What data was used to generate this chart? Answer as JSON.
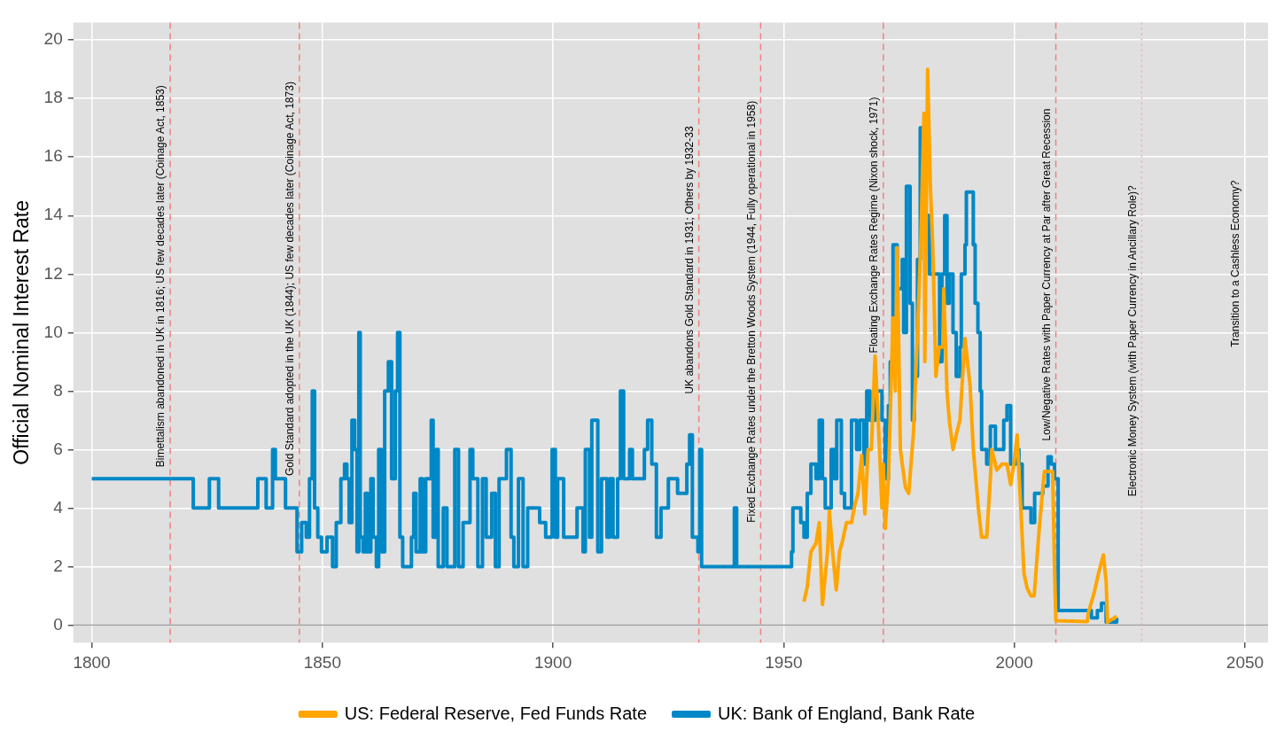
{
  "chart_data": {
    "type": "line",
    "ylabel": "Official Nominal Interest Rate",
    "xlim": [
      1796,
      2055
    ],
    "ylim": [
      -0.6,
      20.6
    ],
    "xticks": [
      1800,
      1850,
      1900,
      1950,
      2000,
      2050
    ],
    "yticks": [
      0,
      2,
      4,
      6,
      8,
      10,
      12,
      14,
      16,
      18,
      20
    ],
    "grid": true,
    "legend": "bottom",
    "marker": "none",
    "series": [
      {
        "name": "UK: Bank of England, Bank Rate",
        "color": "#0088c6",
        "type": "step",
        "x": [
          1800,
          1822,
          1825.5,
          1827.5,
          1836,
          1837.8,
          1839.2,
          1839.8,
          1842,
          1844.5,
          1845.5,
          1846.5,
          1847.2,
          1847.8,
          1848.3,
          1849,
          1849.8,
          1851,
          1852.2,
          1853,
          1854,
          1854.8,
          1855.3,
          1855.8,
          1856.4,
          1857,
          1857.5,
          1857.9,
          1858.2,
          1858.8,
          1859.3,
          1859.8,
          1860.5,
          1861,
          1861.7,
          1862.2,
          1862.8,
          1863.5,
          1864.3,
          1865,
          1865.8,
          1866.3,
          1866.8,
          1867.4,
          1869.3,
          1869.8,
          1870.3,
          1871.2,
          1871.7,
          1872.4,
          1873.6,
          1874,
          1874.7,
          1875.1,
          1876.2,
          1877,
          1878.7,
          1879.5,
          1880.5,
          1882,
          1882.6,
          1883.7,
          1884.7,
          1885.5,
          1886.7,
          1887.5,
          1888.3,
          1889.9,
          1890.9,
          1891.5,
          1892.5,
          1893.5,
          1894.5,
          1897.1,
          1898.4,
          1899.8,
          1900.5,
          1901,
          1902.3,
          1905.2,
          1906.5,
          1907,
          1907.9,
          1908.4,
          1909.7,
          1910.5,
          1911.7,
          1912.3,
          1913,
          1914,
          1914.6,
          1915.3,
          1916.6,
          1917.2,
          1919.8,
          1920.5,
          1921.4,
          1922.4,
          1923.4,
          1925,
          1926,
          1927,
          1929,
          1929.6,
          1930.2,
          1931.4,
          1931.8,
          1932.2,
          1939.3,
          1939.8,
          1951.7,
          1952,
          1953.7,
          1954.4,
          1955.1,
          1955.9,
          1957,
          1957.7,
          1958.4,
          1959,
          1960.3,
          1961,
          1961.5,
          1962.5,
          1963.2,
          1964.7,
          1965.8,
          1966.5,
          1967.4,
          1968,
          1968.7,
          1969.8,
          1971.3,
          1972,
          1972.7,
          1973.1,
          1973.7,
          1974.6,
          1975.7,
          1976,
          1976.6,
          1977.4,
          1977.9,
          1978.3,
          1979,
          1979.6,
          1980.8,
          1981.6,
          1983.8,
          1984.3,
          1984.9,
          1985.4,
          1985.9,
          1986.7,
          1987.4,
          1988.2,
          1988.5,
          1989.3,
          1989.6,
          1991.1,
          1991.5,
          1992.1,
          1992.6,
          1992.9,
          1994,
          1994.8,
          1995.9,
          1997.7,
          1998.4,
          1999.2,
          2000.3,
          2001,
          2001.7,
          2003.6,
          2004.4,
          2006.2,
          2007.3,
          2008,
          2008.7,
          2009.5,
          2016.7,
          2018,
          2018.9,
          2019.9,
          2022.2
        ],
        "values": [
          5,
          4,
          5,
          4,
          5,
          4,
          6,
          5,
          4,
          2.5,
          3.5,
          3,
          5,
          8,
          4,
          3,
          2.5,
          3,
          2,
          3.5,
          5,
          5.5,
          5,
          3.5,
          7,
          6,
          2.5,
          10,
          3,
          2.5,
          4.5,
          2.5,
          5,
          3,
          2,
          6,
          2.5,
          8,
          9,
          5,
          8,
          10,
          3,
          2,
          3,
          4.5,
          2.5,
          5,
          2.5,
          5,
          7,
          3,
          6,
          2,
          4,
          2,
          6,
          2,
          3.5,
          6,
          5,
          2,
          5,
          3,
          4.5,
          2,
          5,
          6,
          3,
          2,
          5,
          2,
          4,
          3.5,
          3,
          6,
          3,
          5,
          3,
          4,
          2.5,
          6,
          3,
          7,
          2.5,
          5,
          3,
          5,
          3,
          5,
          8,
          5,
          6,
          5,
          6,
          7,
          5.5,
          3,
          4,
          5,
          5,
          4.5,
          5.5,
          6.5,
          3,
          2.5,
          6,
          2,
          4,
          2,
          2.5,
          4,
          3.5,
          3,
          4.5,
          5.5,
          5,
          7,
          5,
          4,
          6,
          5,
          7,
          4.5,
          4,
          7,
          6,
          7,
          5.5,
          8,
          7,
          8,
          7,
          5,
          7.5,
          9,
          13,
          11.5,
          12.5,
          10,
          15,
          11,
          7,
          8.5,
          12.5,
          17,
          14,
          12,
          9,
          12,
          14,
          11,
          12,
          10,
          8.5,
          9.5,
          12,
          13,
          14.8,
          13,
          11,
          10,
          8,
          6,
          5.5,
          6.8,
          6,
          7,
          7.5,
          5.5,
          6,
          5.5,
          4,
          3.5,
          4.5,
          4.75,
          5.75,
          5.5,
          5,
          0.5,
          0.25,
          0.5,
          0.75,
          0.1,
          0.25
        ]
      },
      {
        "name": "US: Federal Reserve, Fed Funds Rate",
        "color": "#ffa500",
        "x": [
          1954.4,
          1955.1,
          1955.9,
          1957,
          1957.7,
          1958.4,
          1959.5,
          1959.9,
          1960.6,
          1961.4,
          1962.1,
          1962.8,
          1963.6,
          1964.7,
          1965.4,
          1966.1,
          1966.9,
          1967.6,
          1968.3,
          1969,
          1969.8,
          1970.5,
          1971.3,
          1971.6,
          1972,
          1972.7,
          1973.7,
          1974.2,
          1974.6,
          1975.3,
          1975.7,
          1976.4,
          1977.1,
          1978.1,
          1979,
          1979.7,
          1980.4,
          1980.6,
          1981.2,
          1981.8,
          1982.3,
          1983,
          1983.7,
          1984.5,
          1984.7,
          1985.4,
          1985.9,
          1986.7,
          1987.4,
          1988.2,
          1989.3,
          1990.4,
          1991.1,
          1992.2,
          1992.9,
          1994,
          1994.8,
          1995.1,
          1996.2,
          1997.3,
          1998.4,
          1999.2,
          1999.9,
          2000.6,
          2001.4,
          2002.1,
          2002.8,
          2003.6,
          2004.3,
          2005.4,
          2006.5,
          2008.3,
          2008.7,
          2009,
          2015.8,
          2016,
          2017.3,
          2018.3,
          2019.3,
          2019.9,
          2020.2,
          2022.2
        ],
        "values": [
          0.8,
          1.3,
          2.5,
          2.8,
          3.5,
          0.7,
          2.5,
          3.9,
          2.5,
          1.2,
          2.5,
          2.9,
          3.5,
          3.5,
          4.1,
          4.5,
          5.8,
          3.8,
          6,
          6,
          9.2,
          7,
          4,
          5.5,
          3.3,
          5,
          10.5,
          8,
          12.9,
          6,
          5.5,
          4.7,
          4.5,
          6.5,
          10,
          13,
          17.5,
          9,
          19,
          15,
          13,
          8.5,
          9.5,
          9.5,
          11.5,
          8,
          7,
          6,
          6.5,
          7,
          9.8,
          8.2,
          6,
          4,
          3,
          3,
          5,
          6,
          5.3,
          5.5,
          5.5,
          4.8,
          5.5,
          6.5,
          4,
          1.75,
          1.25,
          1,
          1,
          3.3,
          5.25,
          5.25,
          2,
          0.15,
          0.12,
          0.4,
          1.1,
          1.8,
          2.4,
          1.5,
          0.1,
          0.3
        ]
      }
    ],
    "ref_lines": [
      {
        "axis": "y",
        "value": 0,
        "color": "#a0a0a0",
        "line_style": "solid"
      },
      {
        "axis": "x",
        "value": 1817,
        "color": "#f08080",
        "line_style": "dashed"
      },
      {
        "axis": "x",
        "value": 1845,
        "color": "#f08080",
        "line_style": "dashed"
      },
      {
        "axis": "x",
        "value": 1931.6,
        "color": "#f08080",
        "line_style": "dashed"
      },
      {
        "axis": "x",
        "value": 1945,
        "color": "#f08080",
        "line_style": "dashed"
      },
      {
        "axis": "x",
        "value": 1971.6,
        "color": "#f08080",
        "line_style": "dashed"
      },
      {
        "axis": "x",
        "value": 2009,
        "color": "#f08080",
        "line_style": "dashed"
      },
      {
        "axis": "x",
        "value": 2027.6,
        "color": "#f4a8a8",
        "line_style": "dotted"
      },
      {
        "axis": "x",
        "value": 2050,
        "color": "#ffffff",
        "line_style": "dotted"
      }
    ],
    "annotations": [
      {
        "text": "Bimettalism abandoned in UK in 1816; US few decades later (Coinage Act, 1853)",
        "x": 1817,
        "y": 5.4
      },
      {
        "text": "Gold Standard adopted in the UK (1844); US few decades later (Coinage Act, 1873)",
        "x": 1845,
        "y": 5.1
      },
      {
        "text": "UK abandons Gold Standard in 1931; Others by 1932-33",
        "x": 1931.6,
        "y": 7.9
      },
      {
        "text": "Fixed Exchange Rates under the Bretton Woods System (1944, Fully operational in 1958)",
        "x": 1945,
        "y": 3.5
      },
      {
        "text": "Floating Exchange Rates Regime (Nixon shock, 1971)",
        "x": 1971.6,
        "y": 9.3
      },
      {
        "text": "Low/Negative Rates with Paper Currency at Par after Great Recession",
        "x": 2009,
        "y": 6.3
      },
      {
        "text": "Electronic Money System (with Paper Currency in Ancillary Role)?",
        "x": 2027.6,
        "y": 4.4
      },
      {
        "text": "Transition to a Cashless Economy?",
        "x": 2050,
        "y": 9.5
      }
    ]
  }
}
